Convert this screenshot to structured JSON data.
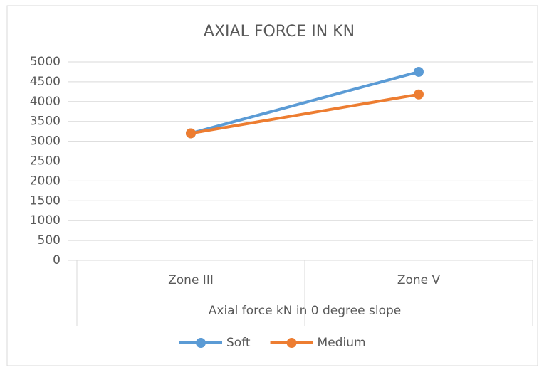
{
  "chart_data": {
    "type": "line",
    "title": "AXIAL FORCE IN KN",
    "x_label": "Axial force kN in 0 degree slope",
    "categories": [
      "Zone III",
      "Zone V"
    ],
    "series": [
      {
        "name": "Soft",
        "color": "#5b9bd5",
        "values": [
          3200,
          4750
        ]
      },
      {
        "name": "Medium",
        "color": "#ed7d31",
        "values": [
          3200,
          4180
        ]
      }
    ],
    "ylim": [
      0,
      5000
    ],
    "yticks": [
      0,
      500,
      1000,
      1500,
      2000,
      2500,
      3000,
      3500,
      4000,
      4500,
      5000
    ],
    "grid": true,
    "legend": "bottom"
  }
}
